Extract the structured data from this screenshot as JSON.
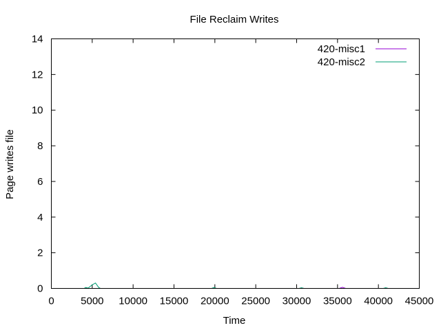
{
  "chart_data": {
    "type": "line",
    "title": "File Reclaim Writes",
    "xlabel": "Time",
    "ylabel": "Page writes file",
    "xlim": [
      0,
      45000
    ],
    "ylim": [
      0,
      14
    ],
    "xticks": [
      0,
      5000,
      10000,
      15000,
      20000,
      25000,
      30000,
      35000,
      40000,
      45000
    ],
    "yticks": [
      0,
      2,
      4,
      6,
      8,
      10,
      12,
      14
    ],
    "grid": false,
    "legend_position": "top-right",
    "series": [
      {
        "name": "420-misc1",
        "color": "#9400d3",
        "x": [
          0,
          35200,
          35600,
          36000,
          43000
        ],
        "y": [
          0,
          0,
          0.06,
          0,
          0
        ]
      },
      {
        "name": "420-misc2",
        "color": "#009e73",
        "x": [
          0,
          4000,
          4200,
          4500,
          5000,
          5400,
          5800,
          6000,
          19600,
          19900,
          20200,
          30300,
          30600,
          30900,
          40600,
          40900,
          41200,
          43000
        ],
        "y": [
          0,
          0,
          0.05,
          0.02,
          0.2,
          0.3,
          0.05,
          0,
          0,
          0.05,
          0,
          0,
          0.04,
          0,
          0,
          0.04,
          0,
          0
        ]
      }
    ]
  }
}
